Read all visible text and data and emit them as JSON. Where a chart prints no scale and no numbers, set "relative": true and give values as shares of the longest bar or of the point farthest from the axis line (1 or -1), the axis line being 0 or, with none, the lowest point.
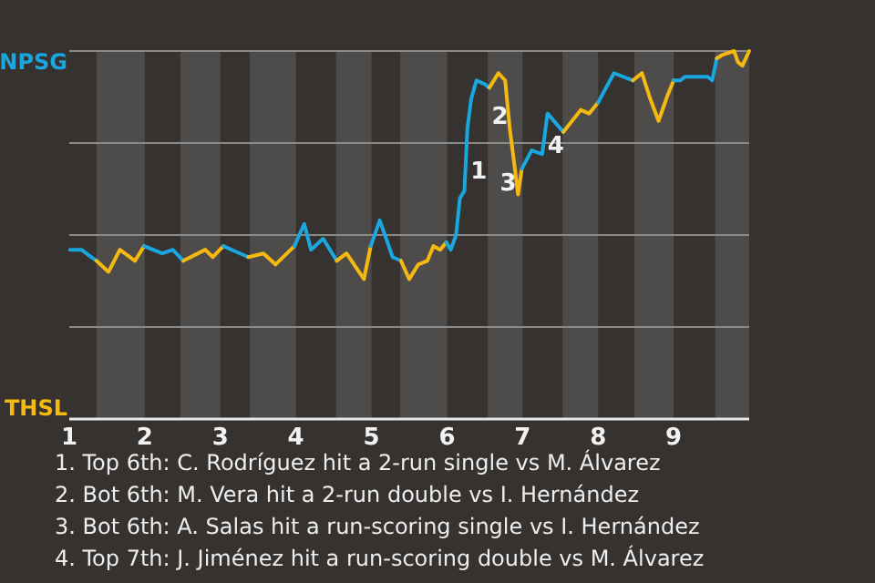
{
  "chart_data": {
    "type": "line",
    "relative": true,
    "xlim": [
      1,
      10
    ],
    "xticks": [
      1,
      2,
      3,
      4,
      5,
      6,
      7,
      8,
      9
    ],
    "series": [
      {
        "name": "NPSG",
        "color": "#1aa7e0",
        "x": [
          1.01,
          1.16,
          1.36
        ],
        "values": [
          0.46,
          0.46,
          0.43
        ]
      },
      {
        "name": "THSL",
        "color": "#f5b90f",
        "x": [
          1.36,
          1.52,
          1.67,
          1.87,
          1.99
        ],
        "values": [
          0.43,
          0.4,
          0.46,
          0.43,
          0.47
        ]
      },
      {
        "color": "#1aa7e0",
        "x": [
          1.99,
          2.23,
          2.37,
          2.51
        ],
        "values": [
          0.47,
          0.45,
          0.46,
          0.43
        ]
      },
      {
        "color": "#f5b90f",
        "x": [
          2.51,
          2.8,
          2.9,
          3.04
        ],
        "values": [
          0.43,
          0.46,
          0.44,
          0.47
        ]
      },
      {
        "color": "#1aa7e0",
        "x": [
          3.04,
          3.37
        ],
        "values": [
          0.47,
          0.44
        ]
      },
      {
        "color": "#f5b90f",
        "x": [
          3.37,
          3.57,
          3.73,
          3.98
        ],
        "values": [
          0.44,
          0.45,
          0.42,
          0.47
        ]
      },
      {
        "color": "#1aa7e0",
        "x": [
          3.98,
          4.11,
          4.2,
          4.36,
          4.54
        ],
        "values": [
          0.47,
          0.53,
          0.46,
          0.49,
          0.43
        ]
      },
      {
        "color": "#f5b90f",
        "x": [
          4.54,
          4.67,
          4.9,
          4.99
        ],
        "values": [
          0.43,
          0.45,
          0.38,
          0.47
        ]
      },
      {
        "color": "#1aa7e0",
        "x": [
          4.99,
          5.11,
          5.28,
          5.39
        ],
        "values": [
          0.47,
          0.54,
          0.44,
          0.43
        ]
      },
      {
        "color": "#f5b90f",
        "x": [
          5.39,
          5.5,
          5.62,
          5.74,
          5.82,
          5.91,
          5.99
        ],
        "values": [
          0.43,
          0.38,
          0.42,
          0.43,
          0.47,
          0.46,
          0.48
        ]
      },
      {
        "color": "#1aa7e0",
        "x": [
          5.99,
          6.05,
          6.12,
          6.17,
          6.23,
          6.27,
          6.32,
          6.39,
          6.5,
          6.56
        ],
        "values": [
          0.48,
          0.46,
          0.5,
          0.6,
          0.62,
          0.79,
          0.87,
          0.92,
          0.91,
          0.9
        ]
      },
      {
        "color": "#f5b90f",
        "x": [
          6.56,
          6.68,
          6.77,
          6.83,
          6.88,
          6.94,
          6.99
        ],
        "values": [
          0.9,
          0.94,
          0.92,
          0.79,
          0.71,
          0.61,
          0.68
        ]
      },
      {
        "color": "#1aa7e0",
        "x": [
          6.99,
          7.12,
          7.26,
          7.33,
          7.54
        ],
        "values": [
          0.68,
          0.73,
          0.72,
          0.83,
          0.78
        ]
      },
      {
        "color": "#f5b90f",
        "x": [
          7.54,
          7.77,
          7.88,
          8.0
        ],
        "values": [
          0.78,
          0.84,
          0.83,
          0.86
        ]
      },
      {
        "color": "#1aa7e0",
        "x": [
          8.0,
          8.21,
          8.46
        ],
        "values": [
          0.86,
          0.94,
          0.92
        ]
      },
      {
        "color": "#f5b90f",
        "x": [
          8.46,
          8.58,
          8.69,
          8.8,
          8.92,
          9.0
        ],
        "values": [
          0.92,
          0.94,
          0.87,
          0.81,
          0.88,
          0.92
        ]
      },
      {
        "color": "#1aa7e0",
        "x": [
          9.0,
          9.09,
          9.15,
          9.45,
          9.51,
          9.57
        ],
        "values": [
          0.92,
          0.92,
          0.93,
          0.93,
          0.92,
          0.98
        ]
      },
      {
        "color": "#f5b90f",
        "x": [
          9.57,
          9.65,
          9.8,
          9.85,
          9.91,
          10.0
        ],
        "values": [
          0.98,
          0.99,
          1.0,
          0.97,
          0.96,
          1.0
        ]
      }
    ],
    "marker": "none",
    "grid": "y",
    "bands": [
      {
        "axis": "x",
        "from": 1.36,
        "to": 2,
        "color": "#4e4c4a"
      },
      {
        "axis": "x",
        "from": 2.47,
        "to": 3,
        "color": "#4e4c4a"
      },
      {
        "axis": "x",
        "from": 3.39,
        "to": 4,
        "color": "#4e4c4a"
      },
      {
        "axis": "x",
        "from": 4.53,
        "to": 5,
        "color": "#4e4c4a"
      },
      {
        "axis": "x",
        "from": 5.38,
        "to": 6,
        "color": "#4e4c4a"
      },
      {
        "axis": "x",
        "from": 6.54,
        "to": 7,
        "color": "#4e4c4a"
      },
      {
        "axis": "x",
        "from": 7.53,
        "to": 8,
        "color": "#4e4c4a"
      },
      {
        "axis": "x",
        "from": 8.48,
        "to": 9,
        "color": "#4e4c4a"
      },
      {
        "axis": "x",
        "from": 9.55,
        "to": 10,
        "color": "#4e4c4a"
      }
    ],
    "annotations": [
      {
        "text": "1",
        "x": 6.42,
        "y": 0.67
      },
      {
        "text": "2",
        "x": 6.7,
        "y": 0.82
      },
      {
        "text": "3",
        "x": 6.81,
        "y": 0.64
      },
      {
        "text": "4",
        "x": 7.44,
        "y": 0.74
      },
      "1. Top 6th: C. Rodríguez hit a 2-run single vs M. Álvarez",
      "2. Bot 6th: M. Vera hit a 2-run double vs I. Hernández",
      "3. Bot 6th: A. Salas hit a run-scoring single vs I. Hernández",
      "4. Top 7th: J. Jiménez hit a run-scoring double vs M. Álvarez"
    ]
  }
}
